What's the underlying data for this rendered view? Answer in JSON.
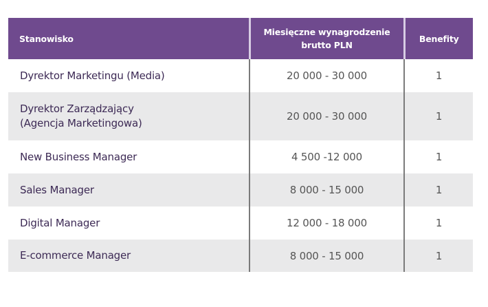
{
  "table": {
    "headers": {
      "position": "Stanowisko",
      "salary_line1": "Miesięczne wynagrodzenie",
      "salary_line2": "brutto PLN",
      "benefits": "Benefity"
    },
    "rows": [
      {
        "position_line1": "Dyrektor Marketingu (Media)",
        "position_line2": "",
        "salary": "20 000 - 30 000",
        "benefits": "1"
      },
      {
        "position_line1": "Dyrektor Zarządzający",
        "position_line2": "(Agencja Marketingowa)",
        "salary": "20 000 - 30 000",
        "benefits": "1"
      },
      {
        "position_line1": "New Business Manager",
        "position_line2": "",
        "salary": "4 500 -12 000",
        "benefits": "1"
      },
      {
        "position_line1": "Sales Manager",
        "position_line2": "",
        "salary": "8 000 - 15 000",
        "benefits": "1"
      },
      {
        "position_line1": "Digital Manager",
        "position_line2": "",
        "salary": "12 000 - 18 000",
        "benefits": "1"
      },
      {
        "position_line1": "E-commerce Manager",
        "position_line2": "",
        "salary": "8 000 - 15 000",
        "benefits": "1"
      }
    ]
  },
  "colors": {
    "header_bg": "#6f4a8e",
    "header_text": "#ffffff",
    "row_alt_bg": "#e9e9ea",
    "position_text": "#3d2a55",
    "number_text": "#555555"
  }
}
